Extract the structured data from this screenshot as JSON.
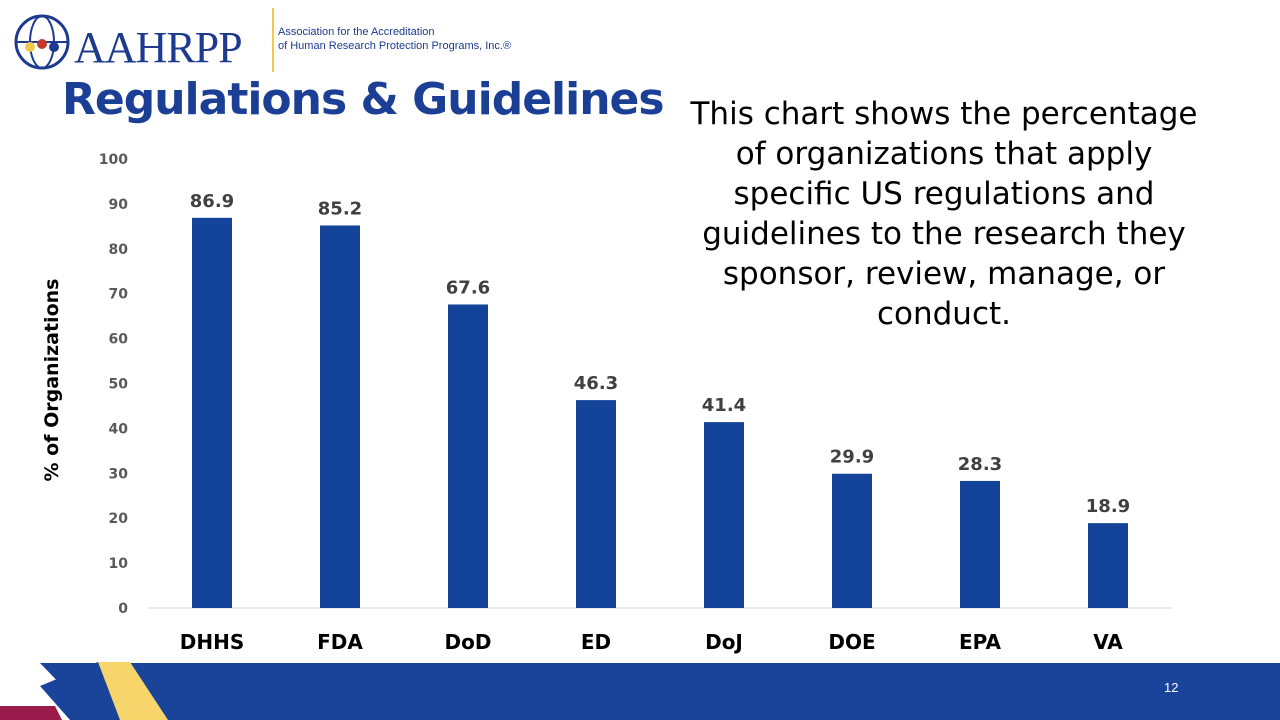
{
  "header": {
    "logo_text": "AAHRPP",
    "logo_sub_line1": "Association for the Accreditation",
    "logo_sub_line2": "of Human Research Protection Programs, Inc.®"
  },
  "slide": {
    "title": "Regulations & Guidelines",
    "description": "This chart shows the percentage of organizations that apply specific US regulations and guidelines to the research they sponsor, review, manage, or conduct.",
    "page_number": "12"
  },
  "colors": {
    "bar": "#13449a",
    "title": "#1a3f95",
    "band": "#1a449a",
    "yellow": "#f8d56a",
    "crimson": "#9a1b4b"
  },
  "chart_data": {
    "type": "bar",
    "categories": [
      "DHHS",
      "FDA",
      "DoD",
      "ED",
      "DoJ",
      "DOE",
      "EPA",
      "VA"
    ],
    "values": [
      86.9,
      85.2,
      67.6,
      46.3,
      41.4,
      29.9,
      28.3,
      18.9
    ],
    "data_labels": [
      "86.9",
      "85.2",
      "67.6",
      "46.3",
      "41.4",
      "29.9",
      "28.3",
      "18.9"
    ],
    "ylabel": "% of Organizations",
    "ylim": [
      0,
      100
    ],
    "yticks": [
      0,
      10,
      20,
      30,
      40,
      50,
      60,
      70,
      80,
      90,
      100
    ],
    "grid": false
  }
}
